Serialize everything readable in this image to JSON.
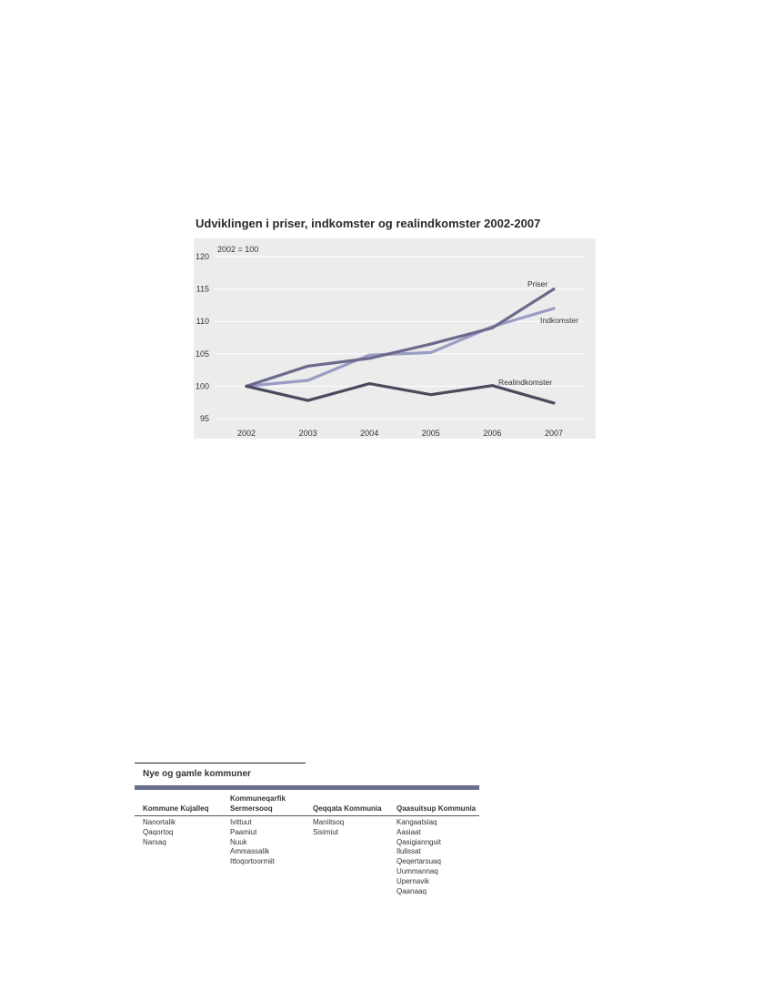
{
  "chart_title": "Udviklingen i priser, indkomster og realindkomster 2002-2007",
  "chart_data": {
    "type": "line",
    "title": "Udviklingen i priser, indkomster og realindkomster 2002-2007",
    "annotation": "2002 = 100",
    "x": [
      "2002",
      "2003",
      "2004",
      "2005",
      "2006",
      "2007"
    ],
    "ylim": [
      95,
      120
    ],
    "yticks": [
      95,
      100,
      105,
      110,
      115,
      120
    ],
    "grid": true,
    "series": [
      {
        "name": "Priser",
        "values": [
          100,
          103.1,
          104.3,
          106.5,
          109,
          115
        ],
        "color": "#6c6a8c"
      },
      {
        "name": "Indkomster",
        "values": [
          100,
          100.9,
          104.8,
          105.2,
          109.2,
          112
        ],
        "color": "#9a9cc4"
      },
      {
        "name": "Realindkomster",
        "values": [
          100,
          97.8,
          100.4,
          98.7,
          100.1,
          97.4
        ],
        "color": "#4a4a5e"
      }
    ]
  },
  "table": {
    "title": "Nye og gamle kommuner",
    "columns": [
      {
        "header": [
          "Kommune Kujalleq"
        ],
        "items": [
          "Nanortalik",
          "Qaqortoq",
          "Narsaq"
        ]
      },
      {
        "header": [
          "Kommuneqarfik",
          "Sermersooq"
        ],
        "items": [
          "Ivittuut",
          "Paamiut",
          "Nuuk",
          "Ammassalik",
          "Ittoqortoormiit"
        ]
      },
      {
        "header": [
          "Qeqqata Kommunia"
        ],
        "items": [
          "Maniitsoq",
          "Sisimiut"
        ]
      },
      {
        "header": [
          "Qaasuitsup Kommunia"
        ],
        "items": [
          "Kangaatsiaq",
          "Aasiaat",
          "Qasigiannguit",
          "Ilulissat",
          "Qeqertarsuaq",
          "Uummannaq",
          "Upernavik",
          "Qaanaaq"
        ]
      }
    ]
  }
}
